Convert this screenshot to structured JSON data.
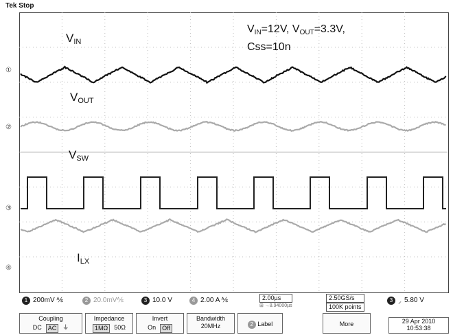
{
  "status": "Tek Stop",
  "labels": {
    "vin_main": "V",
    "vin_sub": "IN",
    "vout_main": "V",
    "vout_sub": "OUT",
    "vsw_main": "V",
    "vsw_sub": "SW",
    "ilx_main": "I",
    "ilx_sub": "LX"
  },
  "annotation": {
    "line1_a": "V",
    "line1_a_sub": "IN",
    "line1_b": "=12V, V",
    "line1_b_sub": "OUT",
    "line1_c": "=3.3V,",
    "line2": "Css=10n"
  },
  "channels": {
    "ch1_num": "1",
    "ch1_scale": "200mV ⅍",
    "ch2_num": "2",
    "ch2_scale": "20.0mV⅍",
    "ch3_num": "3",
    "ch3_scale": "10.0 V",
    "ch4_num": "4",
    "ch4_scale": "2.00 A ⅍"
  },
  "timebase": {
    "scale": "2.00µs",
    "position": "⊞ →8.94000µs"
  },
  "acquisition": {
    "rate": "2.50GS/s",
    "points": "100K points"
  },
  "trigger": {
    "channel": "3",
    "level": "5.80 V"
  },
  "menu": {
    "coupling_label": "Coupling",
    "coupling_dc": "DC",
    "coupling_ac": "AC",
    "impedance_label": "Impedance",
    "imp_1m": "1MΩ",
    "imp_50": "50Ω",
    "invert_label": "Invert",
    "invert_on": "On",
    "invert_off": "Off",
    "bandwidth_label": "Bandwidth",
    "bandwidth_value": "20MHz",
    "label_btn": "Label",
    "more": "More"
  },
  "datetime": {
    "date": "29 Apr 2010",
    "time": "10:53:38"
  },
  "colors": {
    "dark": "#111111",
    "gray": "#aaaaaa",
    "grid": "#bbbbbb"
  }
}
